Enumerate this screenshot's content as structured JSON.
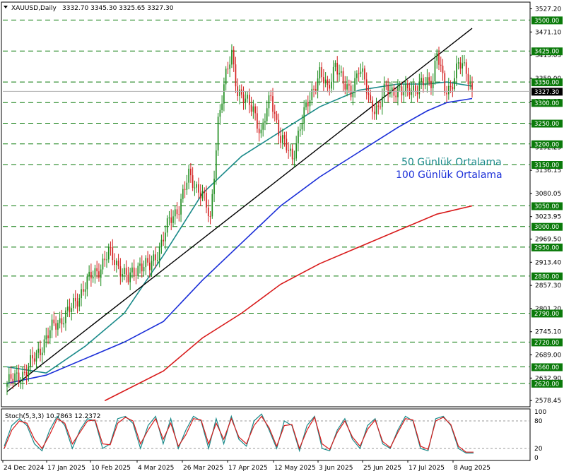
{
  "header": {
    "symbol_text": "XAUUSD,Daily",
    "ohlc_text": "3332.70 3345.30 3325.65 3327.30"
  },
  "stoch_header": "Stoch(5,3,3) 10.7863 12.2372",
  "annotations": {
    "ma50_label": "50 Günlük Ortalama",
    "ma100_label": "100 Günlük Ortalama"
  },
  "colors": {
    "bull": "#1e8c1e",
    "bear": "#d31f1f",
    "ma50": "#1a8a8a",
    "ma100": "#1a2ed8",
    "ma200": "#d81a1a",
    "trendline": "#000000",
    "level_line": "#0a7a0a",
    "level_badge": "#0a7a0a",
    "stoch_k": "#1a8a8a",
    "stoch_d": "#d81a1a"
  },
  "chart_data": [
    {
      "type": "candlestick",
      "title": "XAUUSD,Daily",
      "x_labels": [
        "24 Dec 2024",
        "17 Jan 2025",
        "10 Feb 2025",
        "4 Mar 2025",
        "26 Mar 2025",
        "17 Apr 2025",
        "12 May 2025",
        "3 Jun 2025",
        "25 Jun 2025",
        "17 Jul 2025",
        "8 Aug 2025"
      ],
      "ylim": [
        2565,
        3540
      ],
      "y_ticks": [
        "3527.20",
        "3471.10",
        "3415.05",
        "3359.00",
        "3302.95",
        "3248.15",
        "3192.25",
        "3136.15",
        "3080.05",
        "3023.95",
        "2969.50",
        "2913.40",
        "2857.30",
        "2801.20",
        "2745.10",
        "2689.00",
        "2632.90",
        "2578.45"
      ],
      "levels": [
        "3500.00",
        "3425.00",
        "3350.00",
        "3300.00",
        "3250.00",
        "3200.00",
        "3150.00",
        "3050.00",
        "3000.00",
        "2950.00",
        "2880.00",
        "2790.00",
        "2720.00",
        "2660.00",
        "2620.00"
      ],
      "last_price": "3327.30",
      "close_path": [
        [
          0,
          2620
        ],
        [
          10,
          2650
        ],
        [
          17,
          2705
        ],
        [
          24,
          2760
        ],
        [
          33,
          2800
        ],
        [
          40,
          2860
        ],
        [
          47,
          2898
        ],
        [
          52,
          2935
        ],
        [
          58,
          2900
        ],
        [
          62,
          2870
        ],
        [
          68,
          2910
        ],
        [
          73,
          2900
        ],
        [
          78,
          2950
        ],
        [
          83,
          3010
        ],
        [
          88,
          3050
        ],
        [
          93,
          3120
        ],
        [
          100,
          3080
        ],
        [
          104,
          3010
        ],
        [
          108,
          3260
        ],
        [
          112,
          3360
        ],
        [
          115,
          3420
        ],
        [
          118,
          3330
        ],
        [
          122,
          3300
        ],
        [
          126,
          3290
        ],
        [
          130,
          3220
        ],
        [
          135,
          3320
        ],
        [
          140,
          3210
        ],
        [
          146,
          3170
        ],
        [
          150,
          3240
        ],
        [
          154,
          3300
        ],
        [
          157,
          3340
        ],
        [
          160,
          3370
        ],
        [
          164,
          3330
        ],
        [
          168,
          3400
        ],
        [
          172,
          3340
        ],
        [
          176,
          3330
        ],
        [
          180,
          3380
        ],
        [
          183,
          3350
        ],
        [
          186,
          3300
        ],
        [
          190,
          3280
        ],
        [
          194,
          3340
        ],
        [
          198,
          3330
        ],
        [
          202,
          3320
        ],
        [
          206,
          3340
        ],
        [
          210,
          3330
        ],
        [
          214,
          3350
        ],
        [
          218,
          3360
        ],
        [
          220,
          3420
        ],
        [
          224,
          3330
        ],
        [
          227,
          3340
        ],
        [
          231,
          3390
        ],
        [
          235,
          3380
        ],
        [
          238,
          3330
        ]
      ],
      "series": [
        {
          "name": "50 Günlük Ortalama",
          "points": [
            [
              0,
              2660
            ],
            [
              20,
              2645
            ],
            [
              40,
              2710
            ],
            [
              60,
              2790
            ],
            [
              80,
              2930
            ],
            [
              100,
              3080
            ],
            [
              120,
              3170
            ],
            [
              140,
              3230
            ],
            [
              160,
              3290
            ],
            [
              180,
              3330
            ],
            [
              200,
              3345
            ],
            [
              215,
              3345
            ],
            [
              225,
              3350
            ],
            [
              238,
              3340
            ]
          ]
        },
        {
          "name": "100 Günlük Ortalama",
          "points": [
            [
              0,
              2620
            ],
            [
              20,
              2640
            ],
            [
              40,
              2680
            ],
            [
              60,
              2720
            ],
            [
              80,
              2770
            ],
            [
              100,
              2870
            ],
            [
              120,
              2960
            ],
            [
              140,
              3050
            ],
            [
              160,
              3120
            ],
            [
              180,
              3180
            ],
            [
              200,
              3240
            ],
            [
              215,
              3280
            ],
            [
              225,
              3300
            ],
            [
              238,
              3310
            ]
          ]
        },
        {
          "points": [
            [
              50,
              2578
            ],
            [
              80,
              2650
            ],
            [
              100,
              2730
            ],
            [
              120,
              2790
            ],
            [
              140,
              2860
            ],
            [
              160,
              2910
            ],
            [
              180,
              2950
            ],
            [
              200,
              2990
            ],
            [
              220,
              3030
            ],
            [
              238,
              3050
            ]
          ]
        }
      ],
      "trendline": [
        [
          0,
          2600
        ],
        [
          238,
          3480
        ]
      ]
    },
    {
      "type": "line",
      "title": "Stoch(5,3,3) 10.7863 12.2372",
      "ylim": [
        0,
        100
      ],
      "y_ticks": [
        "100",
        "80",
        "20",
        "0"
      ],
      "series": [
        {
          "name": "%K",
          "values": [
            25,
            70,
            85,
            70,
            30,
            15,
            60,
            90,
            70,
            20,
            60,
            85,
            80,
            20,
            30,
            85,
            90,
            75,
            20,
            70,
            90,
            30,
            85,
            20,
            60,
            90,
            80,
            20,
            85,
            30,
            90,
            40,
            25,
            80,
            95,
            60,
            20,
            80,
            70,
            15,
            70,
            90,
            20,
            15,
            60,
            85,
            40,
            20,
            70,
            85,
            30,
            20,
            60,
            90,
            80,
            20,
            15,
            85,
            90,
            70,
            20,
            10,
            10
          ]
        },
        {
          "name": "%D",
          "values": [
            20,
            60,
            80,
            75,
            40,
            20,
            50,
            85,
            75,
            30,
            55,
            80,
            82,
            30,
            28,
            75,
            88,
            80,
            30,
            60,
            85,
            40,
            75,
            25,
            50,
            85,
            82,
            30,
            75,
            40,
            85,
            45,
            30,
            70,
            90,
            65,
            25,
            70,
            72,
            20,
            60,
            88,
            30,
            18,
            55,
            80,
            45,
            25,
            62,
            82,
            35,
            22,
            55,
            85,
            82,
            25,
            18,
            80,
            88,
            72,
            25,
            12,
            12
          ]
        }
      ]
    }
  ]
}
